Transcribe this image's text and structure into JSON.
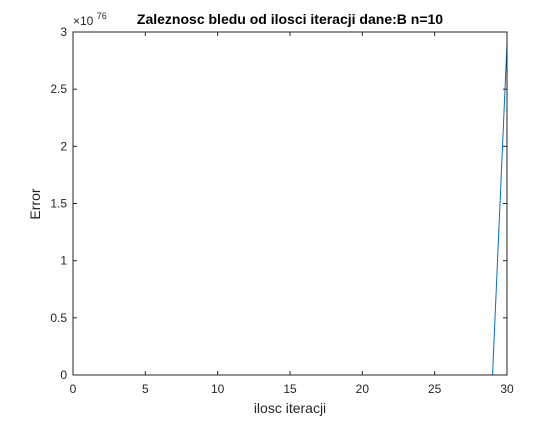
{
  "chart_data": {
    "type": "line",
    "title": "Zaleznosc bledu od ilosci iteracji dane:B n=10",
    "xlabel": "ilosc iteracji",
    "ylabel": "Error",
    "y_multiplier": {
      "base": "×10",
      "exponent": "76"
    },
    "xlim": [
      0,
      30
    ],
    "ylim": [
      0,
      3
    ],
    "xticks": [
      0,
      5,
      10,
      15,
      20,
      25,
      30
    ],
    "yticks": [
      0,
      0.5,
      1,
      1.5,
      2,
      2.5,
      3
    ],
    "ytick_labels": [
      "0",
      "0.5",
      "1",
      "1.5",
      "2",
      "2.5",
      "3"
    ],
    "grid": false,
    "series": [
      {
        "color": "#0072BD",
        "x": [
          1,
          2,
          3,
          4,
          5,
          6,
          7,
          8,
          9,
          10,
          11,
          12,
          13,
          14,
          15,
          16,
          17,
          18,
          19,
          20,
          21,
          22,
          23,
          24,
          25,
          26,
          27,
          28,
          29,
          30
        ],
        "y": [
          0,
          0,
          0,
          0,
          0,
          0,
          0,
          0,
          0,
          0,
          0,
          0,
          0,
          0,
          0,
          0,
          0,
          0,
          0,
          0,
          0,
          0,
          0,
          0,
          0,
          0,
          0,
          0,
          0.0001,
          2.9
        ]
      }
    ]
  }
}
